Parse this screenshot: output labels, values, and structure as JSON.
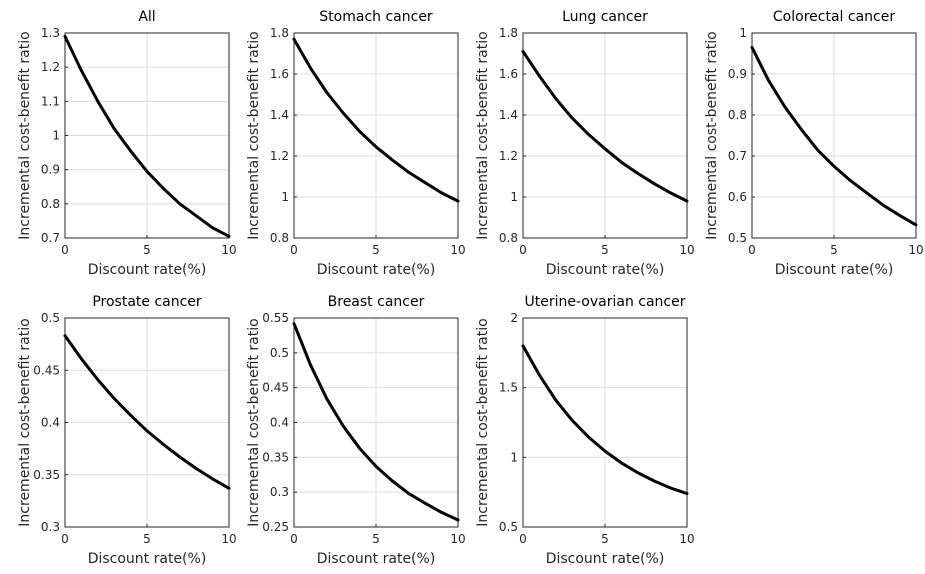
{
  "chart_data": [
    {
      "type": "line",
      "title": "All",
      "xlabel": "Discount rate(%)",
      "ylabel": "Incremental cost-benefit ratio",
      "xlim": [
        0,
        10
      ],
      "ylim": [
        0.7,
        1.3
      ],
      "xticks": [
        "0",
        "5",
        "10"
      ],
      "yticks": [
        "0.7",
        "0.8",
        "0.9",
        "1",
        "1.1",
        "1.2",
        "1.3"
      ],
      "grid": true,
      "x": [
        0,
        1,
        2,
        3,
        4,
        5,
        6,
        7,
        8,
        9,
        10
      ],
      "series": [
        {
          "values": [
            1.29,
            1.19,
            1.1,
            1.02,
            0.955,
            0.895,
            0.845,
            0.8,
            0.765,
            0.73,
            0.705
          ]
        }
      ]
    },
    {
      "type": "line",
      "title": "Stomach cancer",
      "xlabel": "Discount rate(%)",
      "ylabel": "Incremental cost-benefit ratio",
      "xlim": [
        0,
        10
      ],
      "ylim": [
        0.8,
        1.8
      ],
      "xticks": [
        "0",
        "5",
        "10"
      ],
      "yticks": [
        "0.8",
        "1",
        "1.2",
        "1.4",
        "1.6",
        "1.8"
      ],
      "grid": true,
      "x": [
        0,
        1,
        2,
        3,
        4,
        5,
        6,
        7,
        8,
        9,
        10
      ],
      "series": [
        {
          "values": [
            1.77,
            1.63,
            1.51,
            1.41,
            1.32,
            1.245,
            1.18,
            1.12,
            1.07,
            1.02,
            0.98
          ]
        }
      ]
    },
    {
      "type": "line",
      "title": "Lung cancer",
      "xlabel": "Discount rate(%)",
      "ylabel": "Incremental cost-benefit ratio",
      "xlim": [
        0,
        10
      ],
      "ylim": [
        0.8,
        1.8
      ],
      "xticks": [
        "0",
        "5",
        "10"
      ],
      "yticks": [
        "0.8",
        "1",
        "1.2",
        "1.4",
        "1.6",
        "1.8"
      ],
      "grid": true,
      "x": [
        0,
        1,
        2,
        3,
        4,
        5,
        6,
        7,
        8,
        9,
        10
      ],
      "series": [
        {
          "values": [
            1.71,
            1.59,
            1.48,
            1.385,
            1.305,
            1.235,
            1.17,
            1.115,
            1.065,
            1.02,
            0.98
          ]
        }
      ]
    },
    {
      "type": "line",
      "title": "Colorectal cancer",
      "xlabel": "Discount rate(%)",
      "ylabel": "Incremental cost-benefit ratio",
      "xlim": [
        0,
        10
      ],
      "ylim": [
        0.5,
        1
      ],
      "xticks": [
        "0",
        "5",
        "10"
      ],
      "yticks": [
        "0.5",
        "0.6",
        "0.7",
        "0.8",
        "0.9",
        "1"
      ],
      "grid": true,
      "x": [
        0,
        1,
        2,
        3,
        4,
        5,
        6,
        7,
        8,
        9,
        10
      ],
      "series": [
        {
          "values": [
            0.965,
            0.885,
            0.82,
            0.765,
            0.715,
            0.675,
            0.64,
            0.61,
            0.58,
            0.555,
            0.532
          ]
        }
      ]
    },
    {
      "type": "line",
      "title": "Prostate cancer",
      "xlabel": "Discount rate(%)",
      "ylabel": "Incremental cost-benefit ratio",
      "xlim": [
        0,
        10
      ],
      "ylim": [
        0.3,
        0.5
      ],
      "xticks": [
        "0",
        "5",
        "10"
      ],
      "yticks": [
        "0.3",
        "0.35",
        "0.4",
        "0.45",
        "0.5"
      ],
      "grid": true,
      "x": [
        0,
        1,
        2,
        3,
        4,
        5,
        6,
        7,
        8,
        9,
        10
      ],
      "series": [
        {
          "values": [
            0.483,
            0.461,
            0.441,
            0.423,
            0.407,
            0.392,
            0.379,
            0.367,
            0.356,
            0.346,
            0.337
          ]
        }
      ]
    },
    {
      "type": "line",
      "title": "Breast cancer",
      "xlabel": "Discount rate(%)",
      "ylabel": "Incremental cost-benefit ratio",
      "xlim": [
        0,
        10
      ],
      "ylim": [
        0.25,
        0.55
      ],
      "xticks": [
        "0",
        "5",
        "10"
      ],
      "yticks": [
        "0.25",
        "0.3",
        "0.35",
        "0.4",
        "0.45",
        "0.5",
        "0.55"
      ],
      "grid": true,
      "x": [
        0,
        1,
        2,
        3,
        4,
        5,
        6,
        7,
        8,
        9,
        10
      ],
      "series": [
        {
          "values": [
            0.542,
            0.483,
            0.434,
            0.395,
            0.363,
            0.337,
            0.316,
            0.298,
            0.284,
            0.271,
            0.26
          ]
        }
      ]
    },
    {
      "type": "line",
      "title": "Uterine-ovarian cancer",
      "xlabel": "Discount rate(%)",
      "ylabel": "Incremental cost-benefit ratio",
      "xlim": [
        0,
        10
      ],
      "ylim": [
        0.5,
        2
      ],
      "xticks": [
        "0",
        "5",
        "10"
      ],
      "yticks": [
        "0.5",
        "1",
        "1.5",
        "2"
      ],
      "grid": true,
      "x": [
        0,
        1,
        2,
        3,
        4,
        5,
        6,
        7,
        8,
        9,
        10
      ],
      "series": [
        {
          "values": [
            1.8,
            1.59,
            1.41,
            1.265,
            1.145,
            1.045,
            0.96,
            0.89,
            0.83,
            0.78,
            0.74
          ]
        }
      ]
    }
  ]
}
